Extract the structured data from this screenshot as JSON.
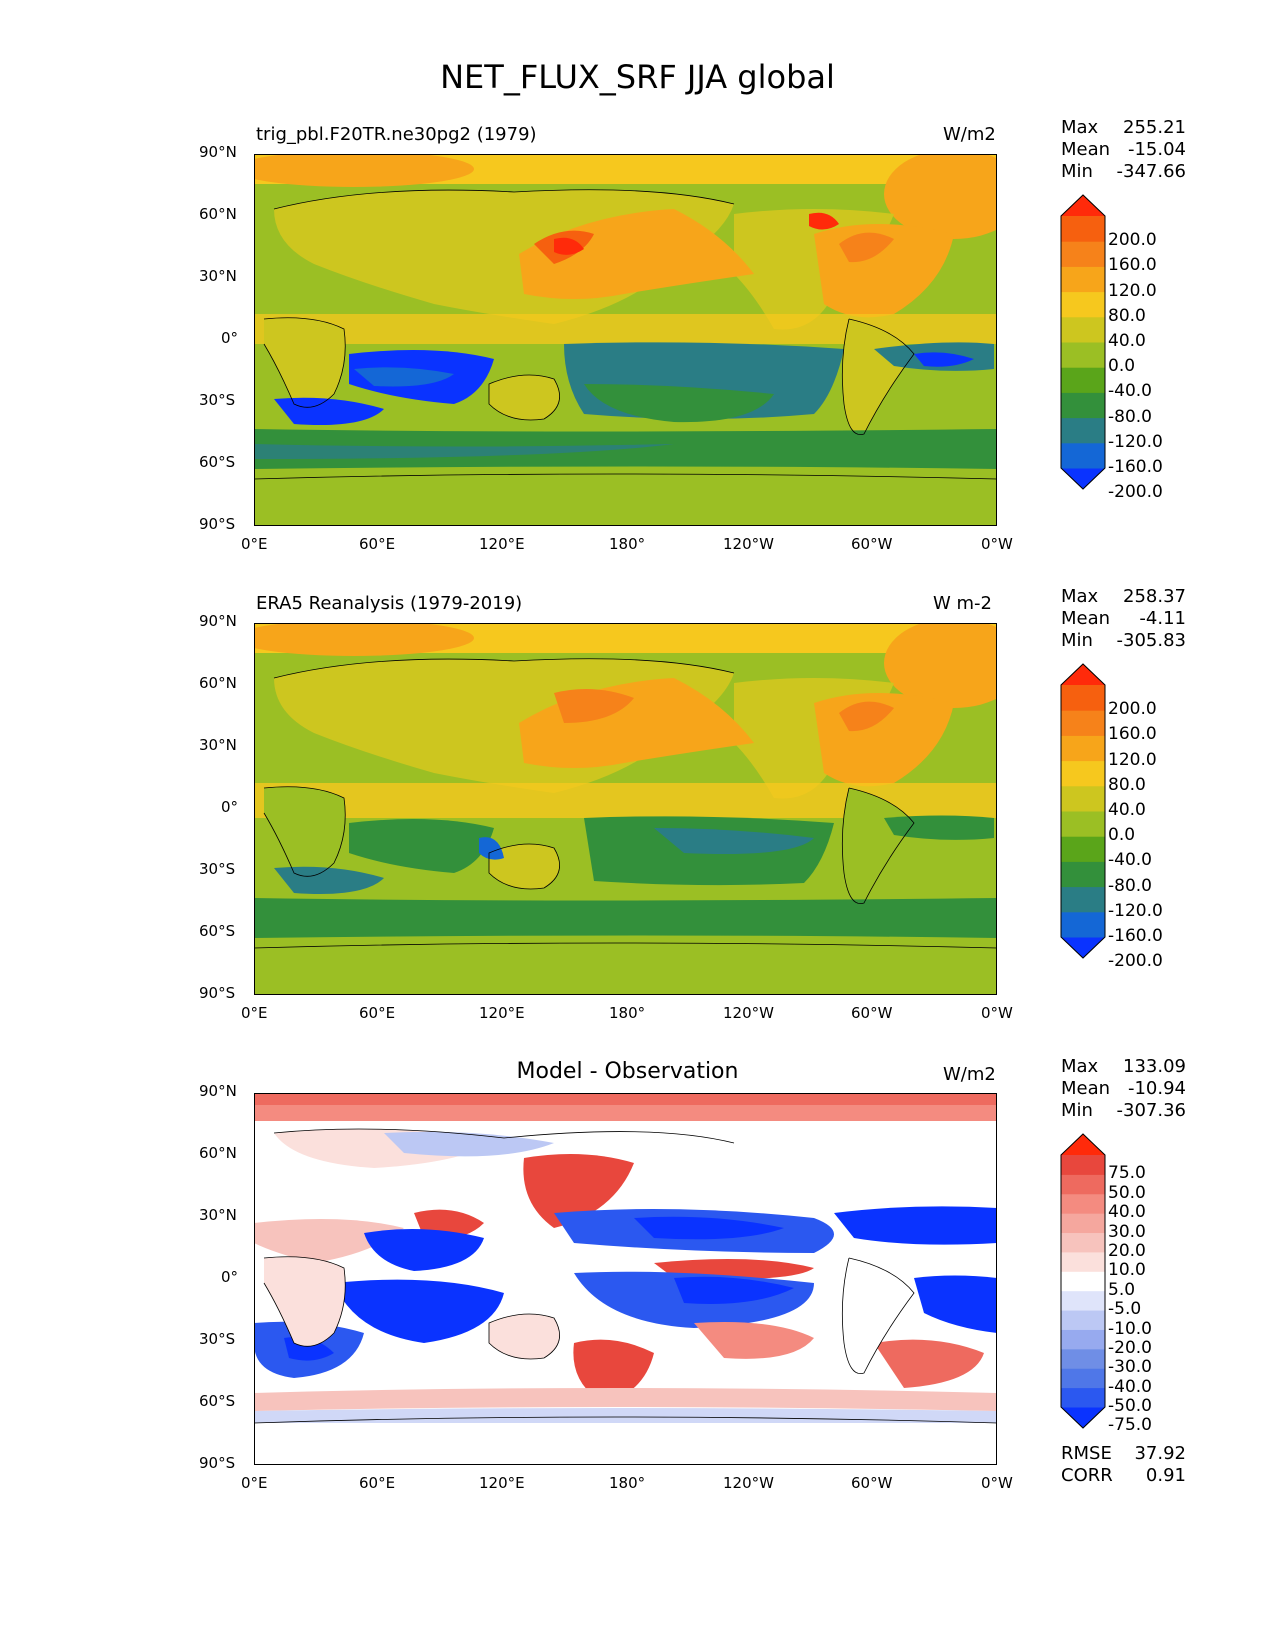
{
  "figure": {
    "title": "NET_FLUX_SRF JJA global"
  },
  "axes": {
    "lat_labels": [
      "90°N",
      "60°N",
      "30°N",
      "0°",
      "30°S",
      "60°S",
      "90°S"
    ],
    "lon_labels": [
      "0°E",
      "60°E",
      "120°E",
      "180°",
      "120°W",
      "60°W",
      "0°W"
    ]
  },
  "panels": [
    {
      "title": "trig_pbl.F20TR.ne30pg2 (1979)",
      "units": "W/m2",
      "stats": {
        "max_label": "Max",
        "max": "255.21",
        "mean_label": "Mean",
        "mean": "-15.04",
        "min_label": "Min",
        "min": "-347.66"
      },
      "colorbar": {
        "labels": [
          "200.0",
          "160.0",
          "120.0",
          "80.0",
          "40.0",
          "0.0",
          "-40.0",
          "-80.0",
          "-120.0",
          "-160.0",
          "-200.0"
        ]
      }
    },
    {
      "title": "ERA5 Reanalysis (1979-2019)",
      "units": "W m-2",
      "stats": {
        "max_label": "Max",
        "max": "258.37",
        "mean_label": "Mean",
        "mean": "-4.11",
        "min_label": "Min",
        "min": "-305.83"
      },
      "colorbar": {
        "labels": [
          "200.0",
          "160.0",
          "120.0",
          "80.0",
          "40.0",
          "0.0",
          "-40.0",
          "-80.0",
          "-120.0",
          "-160.0",
          "-200.0"
        ]
      }
    },
    {
      "title": "Model - Observation",
      "units": "W/m2",
      "stats": {
        "max_label": "Max",
        "max": "133.09",
        "mean_label": "Mean",
        "mean": "-10.94",
        "min_label": "Min",
        "min": "-307.36"
      },
      "colorbar": {
        "labels": [
          "75.0",
          "50.0",
          "40.0",
          "30.0",
          "20.0",
          "10.0",
          "5.0",
          "-5.0",
          "-10.0",
          "-20.0",
          "-30.0",
          "-40.0",
          "-50.0",
          "-75.0"
        ]
      },
      "metrics": {
        "rmse_label": "RMSE",
        "rmse": "37.92",
        "corr_label": "CORR",
        "corr": "0.91"
      }
    }
  ],
  "colors": {
    "full": [
      "#0a33ff",
      "#1467d6",
      "#2a7d85",
      "#33903b",
      "#5aa51a",
      "#9bbf24",
      "#cdc61f",
      "#f6c81e",
      "#f7a51a",
      "#f6821a",
      "#f6600f",
      "#ff2a0a"
    ],
    "diff": [
      "#0a33ff",
      "#2b58f0",
      "#4f77e8",
      "#6f8ee6",
      "#97aaef",
      "#bcc8f4",
      "#dfe4fa",
      "#ffffff",
      "#fbe0dc",
      "#f7c3bd",
      "#f5a79e",
      "#f48b80",
      "#ee6a5f",
      "#e8473d",
      "#ff2a0a"
    ]
  }
}
